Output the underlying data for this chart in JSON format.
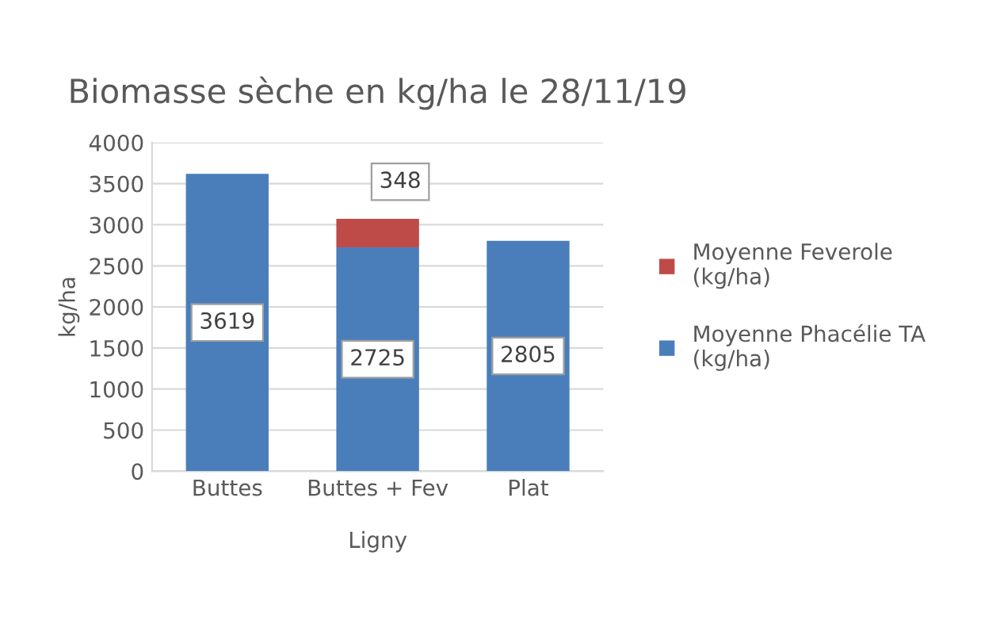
{
  "chart_data": {
    "type": "bar",
    "title": "Biomasse sèche en kg/ha le 28/11/19",
    "xlabel": "Ligny",
    "ylabel": "kg/ha",
    "categories": [
      "Buttes",
      "Buttes + Fev",
      "Plat"
    ],
    "stacked": true,
    "series": [
      {
        "name": "Moyenne Phacélie TA (kg/ha)",
        "color": "#4a7ebb",
        "values": [
          3619,
          2725,
          2805
        ]
      },
      {
        "name": "Moyenne Feverole (kg/ha)",
        "color": "#be4b48",
        "values": [
          null,
          348,
          null
        ]
      }
    ],
    "ylim": [
      0,
      4000
    ],
    "yticks": [
      0,
      500,
      1000,
      1500,
      2000,
      2500,
      3000,
      3500,
      4000
    ],
    "grid": "y",
    "legend": "right",
    "data_labels": true
  }
}
